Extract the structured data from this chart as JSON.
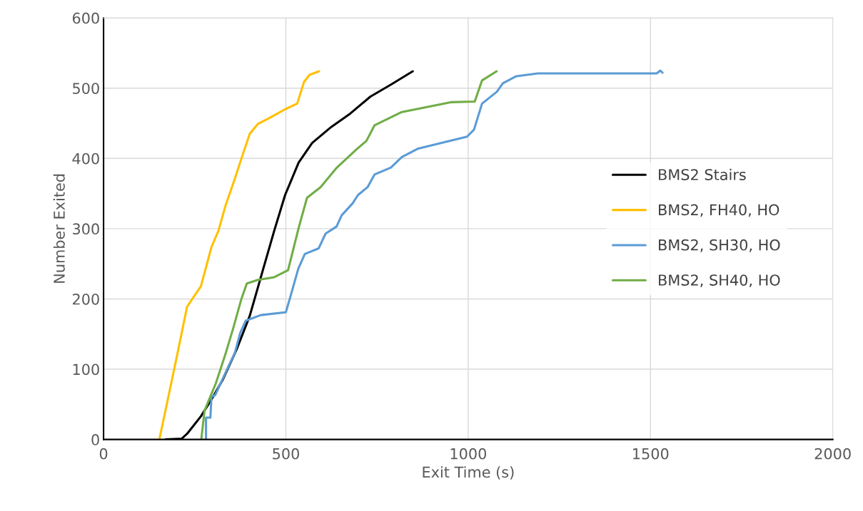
{
  "chart_data": {
    "type": "line",
    "xlabel": "Exit Time (s)",
    "ylabel": "Number Exited",
    "xlim": [
      0,
      2000
    ],
    "xticks": [
      0,
      500,
      1000,
      1500,
      2000
    ],
    "ylim": [
      0,
      600
    ],
    "yticks": [
      0,
      100,
      200,
      300,
      400,
      500,
      600
    ],
    "grid": true,
    "legend": "right",
    "marker": "none",
    "line_style": "solid",
    "series": [
      {
        "name": "BMS2 Stairs",
        "color": "#000000",
        "x": [
          170,
          214,
          229,
          267,
          296,
          326,
          364,
          401,
          438,
          468,
          498,
          535,
          572,
          625,
          677,
          732,
          788,
          848
        ],
        "values": [
          0,
          1,
          8,
          33,
          57,
          84,
          127,
          176,
          243,
          297,
          348,
          394,
          422,
          445,
          464,
          488,
          505,
          524
        ]
      },
      {
        "name": "BMS2, FH40, HO",
        "color": "#ffc000",
        "x": [
          153,
          203,
          229,
          267,
          296,
          315,
          334,
          360,
          382,
          401,
          423,
          453,
          498,
          531,
          550,
          565,
          591
        ],
        "values": [
          0,
          123,
          189,
          218,
          274,
          297,
          332,
          371,
          406,
          435,
          449,
          457,
          470,
          478,
          509,
          519,
          524
        ]
      },
      {
        "name": "BMS2, SH30, HO",
        "color": "#5b9bd5",
        "x": [
          281,
          281,
          293,
          296,
          306,
          338,
          360,
          375,
          390,
          431,
          498,
          500,
          515,
          534,
          552,
          590,
          609,
          639,
          653,
          683,
          698,
          724,
          743,
          788,
          818,
          863,
          997,
          1016,
          1038,
          1079,
          1095,
          1132,
          1191,
          1517,
          1527,
          1533
        ],
        "values": [
          0,
          31,
          31,
          61,
          63,
          99,
          123,
          152,
          169,
          177,
          181,
          181,
          208,
          243,
          264,
          272,
          293,
          303,
          319,
          336,
          348,
          359,
          377,
          387,
          402,
          414,
          431,
          441,
          478,
          495,
          507,
          517,
          521,
          521,
          525,
          522
        ]
      },
      {
        "name": "BMS2, SH40, HO",
        "color": "#70ad47",
        "x": [
          268,
          277,
          308,
          334,
          356,
          378,
          393,
          423,
          468,
          506,
          535,
          558,
          595,
          640,
          692,
          721,
          743,
          818,
          952,
          1018,
          1038,
          1078
        ],
        "values": [
          0,
          41,
          80,
          121,
          159,
          200,
          222,
          227,
          231,
          241,
          301,
          344,
          359,
          387,
          412,
          425,
          447,
          466,
          480,
          481,
          511,
          524
        ]
      }
    ]
  }
}
